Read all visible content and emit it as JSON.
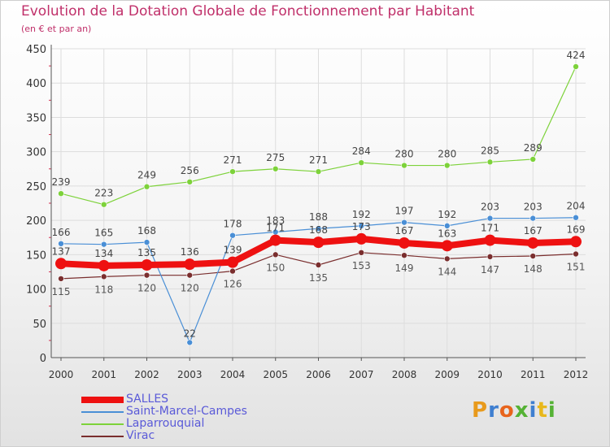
{
  "title": "Evolution de la Dotation Globale de Fonctionnement par Habitant",
  "subtitle": "(en € et par an)",
  "logo_text": "Proxiti",
  "colors": {
    "title": "#c0306a",
    "axis": "#555555",
    "grid": "#dddddd"
  },
  "chart_data": {
    "type": "line",
    "title": "Evolution de la Dotation Globale de Fonctionnement par Habitant",
    "subtitle": "(en € et par an)",
    "x": [
      "2000",
      "2001",
      "2002",
      "2003",
      "2004",
      "2005",
      "2006",
      "2007",
      "2008",
      "2009",
      "2010",
      "2011",
      "2012"
    ],
    "ylim": [
      0,
      450
    ],
    "yticks": [
      0,
      50,
      100,
      150,
      200,
      250,
      300,
      350,
      400,
      450
    ],
    "grid": true,
    "legend_position": "bottom-left",
    "series": [
      {
        "name": "SALLES",
        "color": "#ee1111",
        "values": [
          137,
          134,
          135,
          136,
          139,
          171,
          168,
          173,
          167,
          163,
          171,
          167,
          169
        ]
      },
      {
        "name": "Saint-Marcel-Campes",
        "color": "#4a8fd6",
        "values": [
          166,
          165,
          168,
          22,
          178,
          183,
          188,
          192,
          197,
          192,
          203,
          203,
          204
        ]
      },
      {
        "name": "Laparrouquial",
        "color": "#7dd23a",
        "values": [
          239,
          223,
          249,
          256,
          271,
          275,
          271,
          284,
          280,
          280,
          285,
          289,
          424
        ]
      },
      {
        "name": "Virac",
        "color": "#7a2e2e",
        "values": [
          115,
          118,
          120,
          120,
          126,
          150,
          135,
          153,
          149,
          144,
          147,
          148,
          151
        ]
      }
    ]
  }
}
